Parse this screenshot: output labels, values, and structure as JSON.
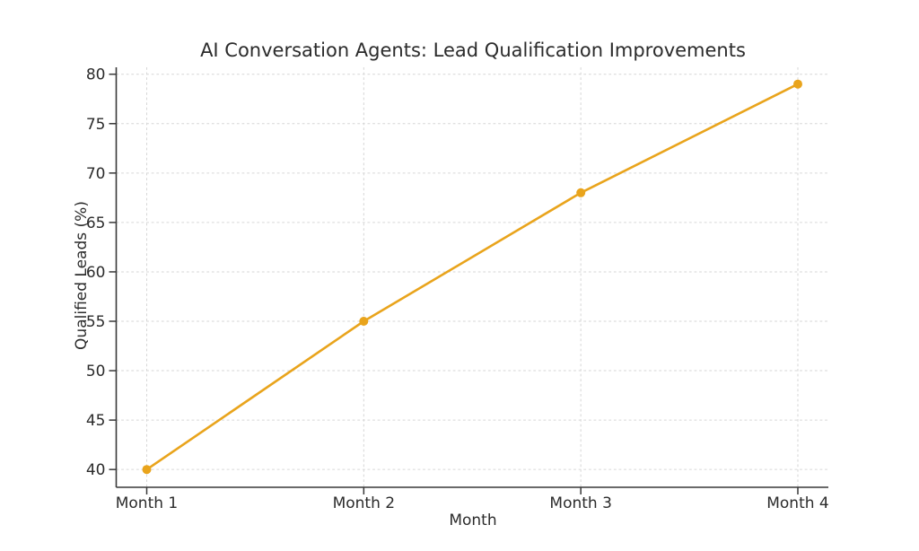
{
  "chart_data": {
    "type": "line",
    "title": "AI Conversation Agents: Lead Qualification Improvements",
    "xlabel": "Month",
    "ylabel": "Qualified Leads (%)",
    "categories": [
      "Month 1",
      "Month 2",
      "Month 3",
      "Month 4"
    ],
    "series": [
      {
        "name": "Qualified Leads",
        "values": [
          40,
          55,
          68,
          79
        ]
      }
    ],
    "yticks": [
      40,
      45,
      50,
      55,
      60,
      65,
      70,
      75,
      80
    ],
    "ylim": [
      38.2,
      80.7
    ],
    "grid": "dashed",
    "legend": "none",
    "marker": "circle",
    "colors": {
      "line": "#E9A41C",
      "marker": "#E9A41C",
      "grid": "#d6d6d6",
      "axis": "#383838",
      "text": "#2b2b2b",
      "background": "#ffffff"
    }
  }
}
